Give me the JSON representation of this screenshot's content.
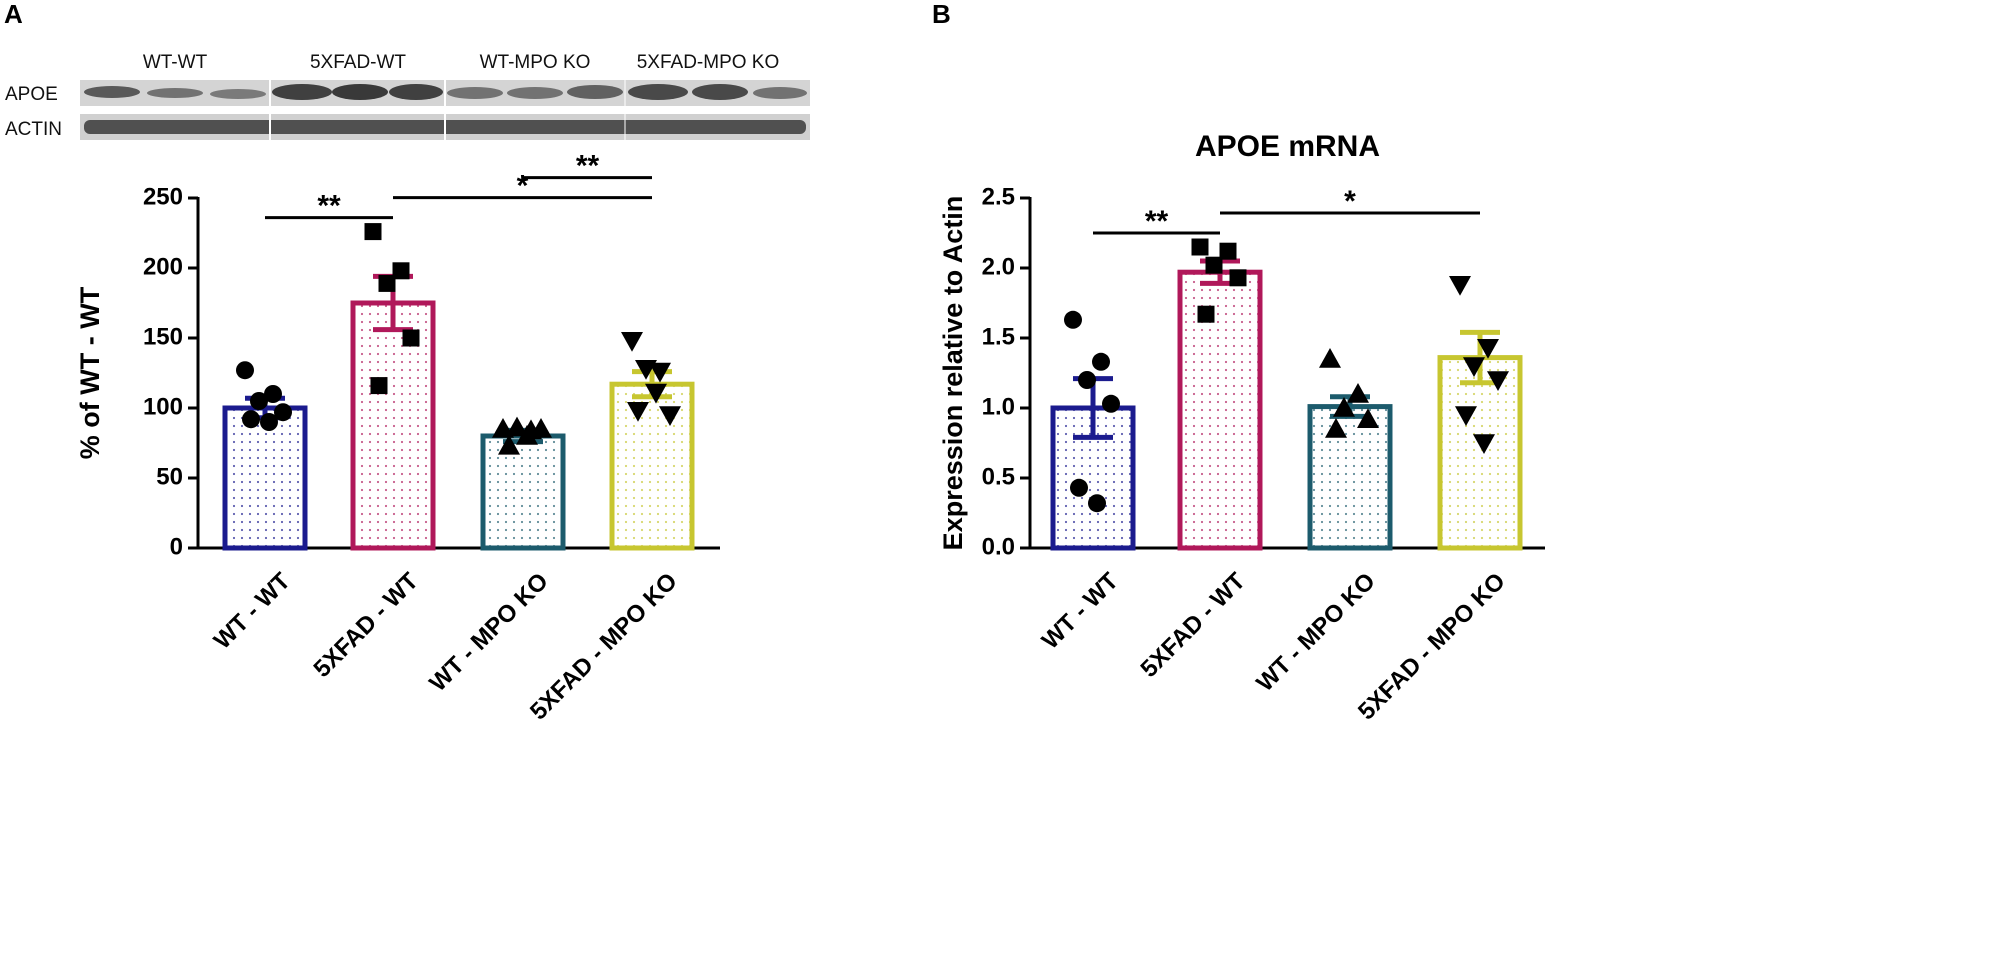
{
  "figure": {
    "panels": [
      "A",
      "B"
    ],
    "blot": {
      "groups": [
        "WT-WT",
        "5XFAD-WT",
        "WT-MPO KO",
        "5XFAD-MPO KO"
      ],
      "rows": [
        "APOE",
        "ACTIN"
      ]
    }
  },
  "chart_data": [
    {
      "type": "bar",
      "ylabel": "% of WT - WT",
      "categories": [
        "WT - WT",
        "5XFAD - WT",
        "WT - MPO KO",
        "5XFAD - MPO KO"
      ],
      "values": [
        100,
        175,
        80,
        117
      ],
      "errors": [
        7,
        19,
        4,
        9
      ],
      "points": [
        [
          127,
          110,
          105,
          97,
          92,
          90
        ],
        [
          226,
          198,
          189,
          150,
          116
        ],
        [
          85,
          84,
          86,
          85,
          73,
          80
        ],
        [
          148,
          126,
          128,
          95,
          98,
          111
        ]
      ],
      "colors": [
        "#1b1b8e",
        "#b0185a",
        "#1c5b6c",
        "#c7c630"
      ],
      "markers": [
        "circle",
        "square",
        "triangle",
        "triangle-down"
      ],
      "ylim": [
        0,
        250
      ],
      "yticks": [
        0,
        50,
        100,
        150,
        200,
        250
      ],
      "annotations": [
        {
          "text": "**",
          "between": [
            "WT - WT",
            "5XFAD - WT"
          ]
        },
        {
          "text": "*",
          "between": [
            "5XFAD - WT",
            "5XFAD - MPO KO"
          ]
        },
        {
          "text": "**",
          "between": [
            "WT - MPO KO",
            "5XFAD - MPO KO"
          ]
        }
      ]
    },
    {
      "type": "bar",
      "title": "APOE mRNA",
      "ylabel": "Expression relative to Actin",
      "categories": [
        "WT - WT",
        "5XFAD - WT",
        "WT - MPO KO",
        "5XFAD - MPO KO"
      ],
      "values": [
        1.0,
        1.97,
        1.01,
        1.36
      ],
      "errors": [
        0.21,
        0.08,
        0.07,
        0.18
      ],
      "points": [
        [
          1.63,
          1.33,
          1.2,
          1.03,
          0.43,
          0.32
        ],
        [
          2.15,
          2.12,
          2.02,
          1.93,
          1.67
        ],
        [
          1.35,
          1.1,
          1.0,
          0.92,
          0.85
        ],
        [
          1.88,
          1.43,
          1.3,
          1.2,
          0.95,
          0.75
        ]
      ],
      "colors": [
        "#1b1b8e",
        "#b0185a",
        "#1c5b6c",
        "#c7c630"
      ],
      "markers": [
        "circle",
        "square",
        "triangle",
        "triangle-down"
      ],
      "ylim": [
        0,
        2.5
      ],
      "yticks": [
        {
          "value": 0,
          "label": "0.0"
        },
        0.5,
        {
          "value": 1,
          "label": "1.0"
        },
        1.5,
        {
          "value": 2,
          "label": "2.0"
        },
        2.5
      ],
      "annotations": [
        {
          "text": "**",
          "between": [
            "WT - WT",
            "5XFAD - WT"
          ]
        },
        {
          "text": "*",
          "between": [
            "5XFAD - WT",
            "5XFAD - MPO KO"
          ]
        }
      ]
    }
  ]
}
